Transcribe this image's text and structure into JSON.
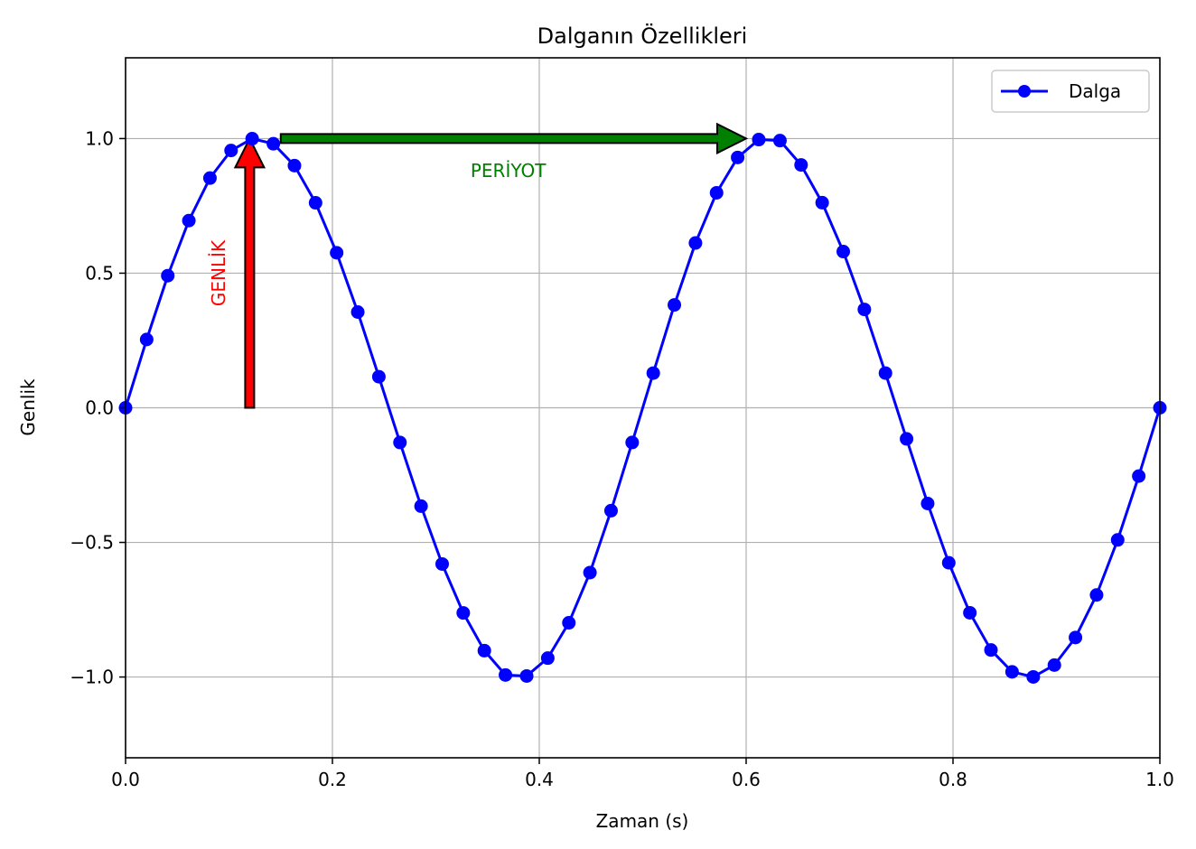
{
  "chart_data": {
    "type": "line",
    "title": "Dalganın Özellikleri",
    "xlabel": "Zaman (s)",
    "ylabel": "Genlik",
    "xlim": [
      0,
      1
    ],
    "ylim": [
      -1.3,
      1.3
    ],
    "x_ticks": [
      0.0,
      0.2,
      0.4,
      0.6,
      0.8,
      1.0
    ],
    "x_tick_labels": [
      "0.0",
      "0.2",
      "0.4",
      "0.6",
      "0.8",
      "1.0"
    ],
    "y_ticks": [
      -1.0,
      -0.5,
      0.0,
      0.5,
      1.0
    ],
    "y_tick_labels": [
      "−1.0",
      "−0.5",
      "0.0",
      "0.5",
      "1.0"
    ],
    "grid": true,
    "legend_position": "top-right",
    "series": [
      {
        "name": "Dalga",
        "color": "#0000ff",
        "marker": "circle",
        "x": [
          0.0,
          0.0204,
          0.0408,
          0.0612,
          0.0816,
          0.102,
          0.1224,
          0.1429,
          0.1633,
          0.1837,
          0.2041,
          0.2245,
          0.2449,
          0.2653,
          0.2857,
          0.3061,
          0.3265,
          0.3469,
          0.3673,
          0.3878,
          0.4082,
          0.4286,
          0.449,
          0.4694,
          0.4898,
          0.5102,
          0.5306,
          0.551,
          0.5714,
          0.5918,
          0.6122,
          0.6327,
          0.6531,
          0.6735,
          0.6939,
          0.7143,
          0.7347,
          0.7551,
          0.7755,
          0.7959,
          0.8163,
          0.8367,
          0.8571,
          0.8776,
          0.898,
          0.9184,
          0.9388,
          0.9592,
          0.9796,
          1.0
        ],
        "y": [
          0.0,
          0.2537,
          0.4907,
          0.6953,
          0.8533,
          0.9557,
          0.9997,
          0.9808,
          0.8997,
          0.7615,
          0.5758,
          0.3556,
          0.1154,
          -0.1288,
          -0.3653,
          -0.5803,
          -0.7619,
          -0.9022,
          -0.9925,
          -0.9962,
          -0.9298,
          -0.7986,
          -0.6122,
          -0.3822,
          -0.1288,
          0.1288,
          0.3822,
          0.6122,
          0.7986,
          0.9298,
          0.9962,
          0.9925,
          0.9022,
          0.7619,
          0.5803,
          0.3653,
          0.1288,
          -0.1154,
          -0.3556,
          -0.5758,
          -0.7615,
          -0.8997,
          -0.9808,
          -0.9997,
          -0.9557,
          -0.8533,
          -0.6953,
          -0.4907,
          -0.2537,
          0.0
        ]
      }
    ],
    "annotations": [
      {
        "text": "GENLİK",
        "color": "#ff0000",
        "arrow_from": [
          0.12,
          0.0
        ],
        "arrow_to": [
          0.12,
          1.0
        ],
        "text_pos": [
          0.09,
          0.5
        ],
        "rotation": 90,
        "arrow_color": "#ff0000"
      },
      {
        "text": "PERİYOT",
        "color": "#008000",
        "arrow_from": [
          0.15,
          1.0
        ],
        "arrow_to": [
          0.6,
          1.0
        ],
        "text_pos": [
          0.37,
          0.88
        ],
        "rotation": 0,
        "arrow_color": "#008000"
      }
    ]
  }
}
